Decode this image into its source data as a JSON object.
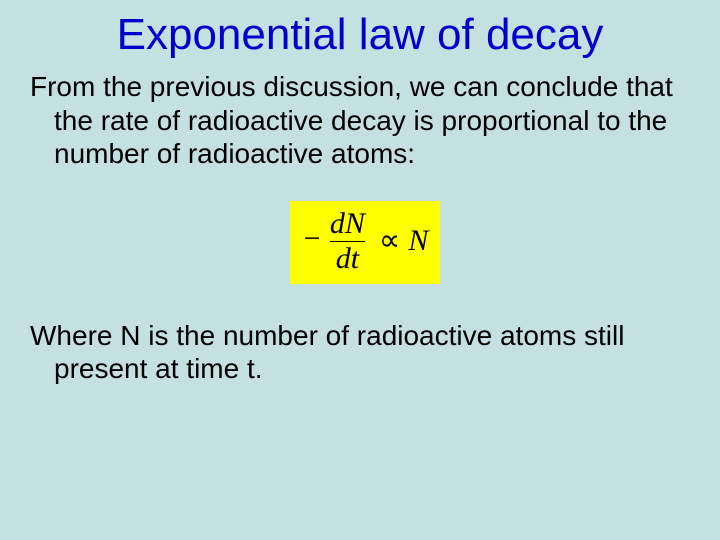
{
  "background_color": "#c5e0e0",
  "title": {
    "text": "Exponential law of decay",
    "color": "#0000cc",
    "font_family": "Comic Sans MS",
    "font_size_pt": 44
  },
  "paragraph1": {
    "text": "From the previous discussion, we can conclude that the rate of radioactive decay is proportional to the number of radioactive atoms:",
    "color": "#000000",
    "font_size_pt": 28
  },
  "equation": {
    "background_color": "#ffff00",
    "text_color": "#000000",
    "font_family": "Times New Roman",
    "font_style": "italic",
    "minus": "−",
    "numerator": "dN",
    "denominator": "dt",
    "relation": "∝",
    "rhs": "N"
  },
  "paragraph2": {
    "text": "Where N is the number of radioactive atoms still present at time t.",
    "color": "#000000",
    "font_size_pt": 28
  }
}
